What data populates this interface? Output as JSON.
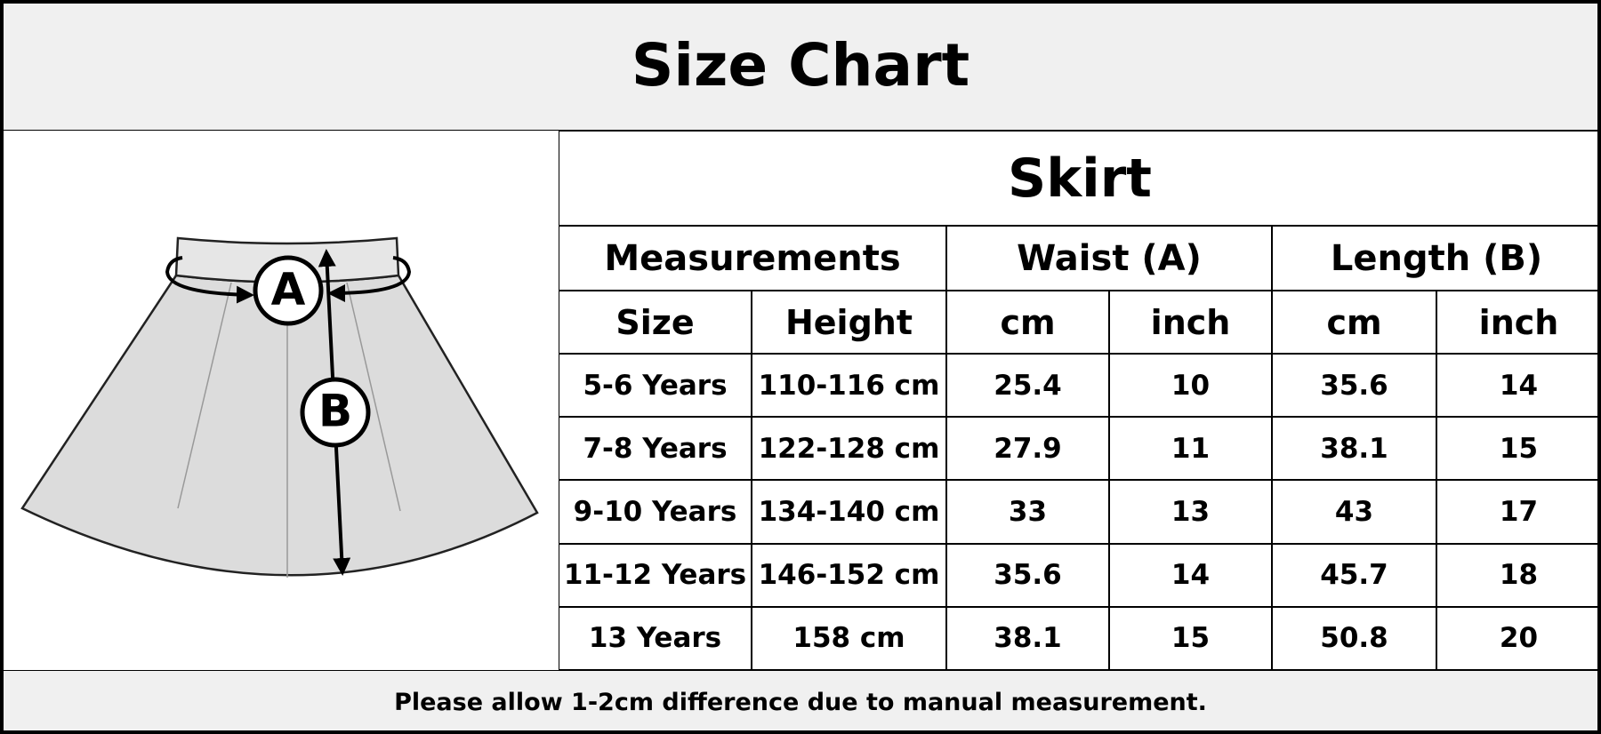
{
  "header": {
    "title": "Size Chart"
  },
  "illustration": {
    "label_a": "A",
    "label_b": "B"
  },
  "table": {
    "title": "Skirt",
    "group_headers": [
      "Measurements",
      "Waist (A)",
      "Length (B)"
    ],
    "columns": [
      "Size",
      "Height",
      "cm",
      "inch",
      "cm",
      "inch"
    ],
    "rows": [
      [
        "5-6 Years",
        "110-116 cm",
        "25.4",
        "10",
        "35.6",
        "14"
      ],
      [
        "7-8 Years",
        "122-128 cm",
        "27.9",
        "11",
        "38.1",
        "15"
      ],
      [
        "9-10 Years",
        "134-140 cm",
        "33",
        "13",
        "43",
        "17"
      ],
      [
        "11-12 Years",
        "146-152 cm",
        "35.6",
        "14",
        "45.7",
        "18"
      ],
      [
        "13 Years",
        "158 cm",
        "38.1",
        "15",
        "50.8",
        "20"
      ]
    ]
  },
  "footer": {
    "note": "Please allow 1-2cm difference due to manual measurement."
  }
}
